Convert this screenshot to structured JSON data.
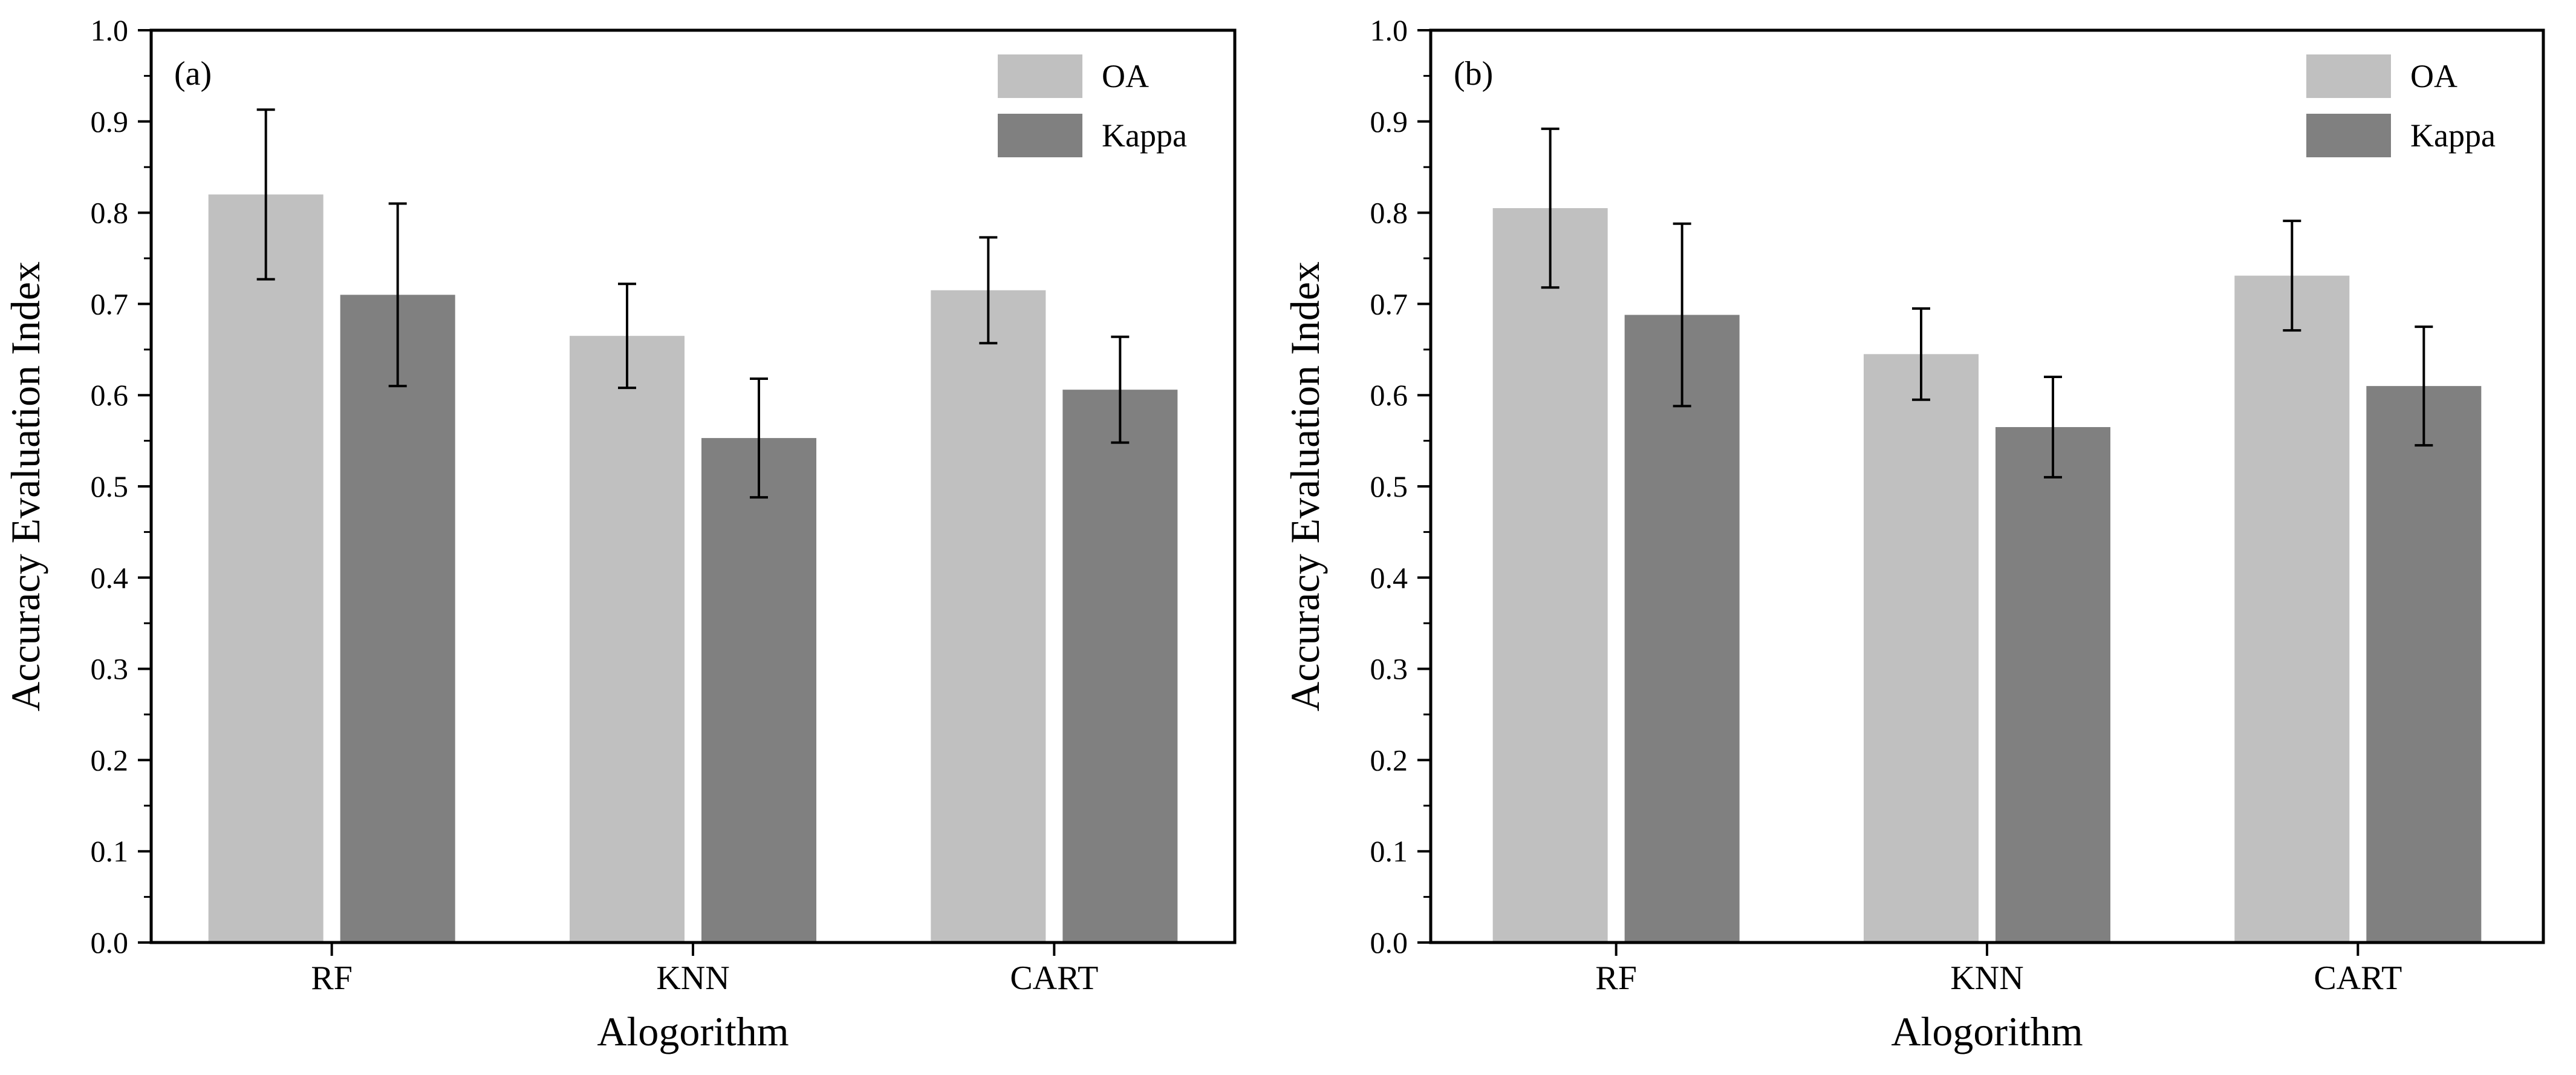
{
  "chart_data": [
    {
      "type": "bar",
      "panel_label": "(a)",
      "xlabel": "Alogorithm",
      "ylabel": "Accuracy Evaluation Index",
      "ylim": [
        0,
        1.0
      ],
      "yticks": [
        "0.0",
        "0.1",
        "0.2",
        "0.3",
        "0.4",
        "0.5",
        "0.6",
        "0.7",
        "0.8",
        "0.9",
        "1.0"
      ],
      "categories": [
        "RF",
        "KNN",
        "CART"
      ],
      "legend_position": "top-right",
      "series": [
        {
          "name": "OA",
          "color": "#c0c0c0",
          "values": [
            0.82,
            0.665,
            0.715
          ],
          "error": [
            0.093,
            0.057,
            0.058
          ]
        },
        {
          "name": "Kappa",
          "color": "#808080",
          "values": [
            0.71,
            0.553,
            0.606
          ],
          "error": [
            0.1,
            0.065,
            0.058
          ]
        }
      ]
    },
    {
      "type": "bar",
      "panel_label": "(b)",
      "xlabel": "Alogorithm",
      "ylabel": "Accuracy Evaluation Index",
      "ylim": [
        0,
        1.0
      ],
      "yticks": [
        "0.0",
        "0.1",
        "0.2",
        "0.3",
        "0.4",
        "0.5",
        "0.6",
        "0.7",
        "0.8",
        "0.9",
        "1.0"
      ],
      "categories": [
        "RF",
        "KNN",
        "CART"
      ],
      "legend_position": "top-right",
      "series": [
        {
          "name": "OA",
          "color": "#c0c0c0",
          "values": [
            0.805,
            0.645,
            0.731
          ],
          "error": [
            0.087,
            0.05,
            0.06
          ]
        },
        {
          "name": "Kappa",
          "color": "#808080",
          "values": [
            0.688,
            0.565,
            0.61
          ],
          "error": [
            0.1,
            0.055,
            0.065
          ]
        }
      ]
    }
  ]
}
